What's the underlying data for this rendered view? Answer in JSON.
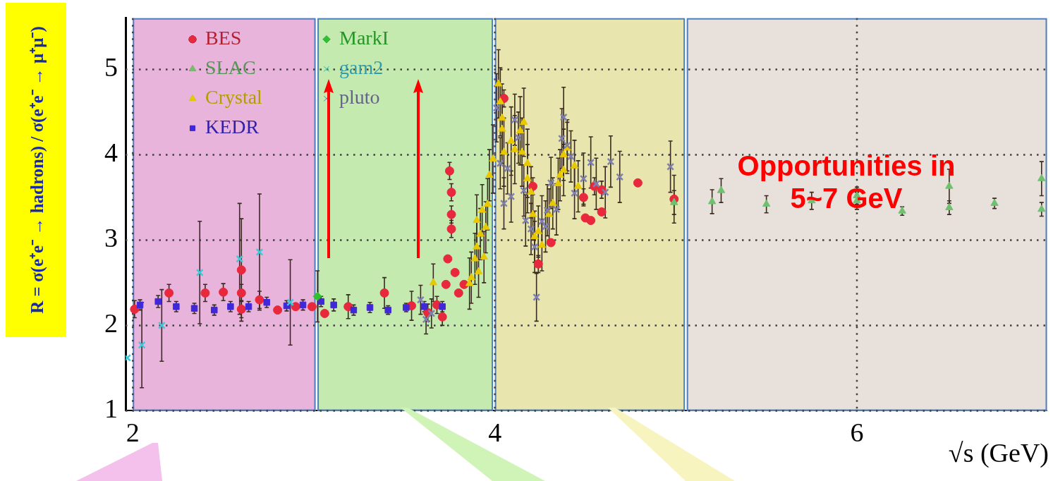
{
  "chart_data": {
    "type": "scatter",
    "xlabel": "√s (GeV)",
    "ylabel": "R = σ(e⁺e⁻ → hadrons) / σ(e⁺e⁻ → μ⁺μ⁻)",
    "xlim": [
      1.96,
      7.05
    ],
    "ylim": [
      1,
      5.6
    ],
    "xticks": [
      2,
      4,
      6
    ],
    "yticks": [
      1,
      2,
      3,
      4,
      5
    ],
    "grid": true,
    "legend": "top left",
    "bands": [
      {
        "axis": "x",
        "from": 2.0,
        "to": 3.01,
        "color": "#e8b4dc"
      },
      {
        "axis": "x",
        "from": 3.02,
        "to": 3.99,
        "color": "#c4eab0"
      },
      {
        "axis": "x",
        "from": 4.0,
        "to": 5.05,
        "color": "#e8e6ae"
      },
      {
        "axis": "x",
        "from": 5.06,
        "to": 7.05,
        "color": "#e8e0da"
      }
    ],
    "annotations": [
      "Opportunities in 5~7 GeV"
    ],
    "series": [
      {
        "name": "BES",
        "color": "#e8283c",
        "marker": "circle",
        "x": [
          2.01,
          2.2,
          2.4,
          2.5,
          2.6,
          2.6,
          2.6,
          2.7,
          2.8,
          2.9,
          2.99,
          3.06,
          3.19,
          3.39,
          3.54,
          3.63,
          3.68,
          3.71,
          3.73,
          3.74,
          3.75,
          3.76,
          3.76,
          3.76,
          3.78,
          3.8,
          3.83,
          4.05,
          4.21,
          4.31,
          4.24,
          4.49,
          4.5,
          4.53,
          4.55,
          4.59,
          4.59,
          4.79,
          4.99
        ],
        "values": [
          2.19,
          2.38,
          2.38,
          2.39,
          2.65,
          2.38,
          2.19,
          2.3,
          2.18,
          2.22,
          2.22,
          2.14,
          2.22,
          2.38,
          2.23,
          2.15,
          2.24,
          2.1,
          2.48,
          2.78,
          3.81,
          3.56,
          3.3,
          3.13,
          2.62,
          2.38,
          2.48,
          4.66,
          3.63,
          2.97,
          2.72,
          3.5,
          3.26,
          3.23,
          3.63,
          3.59,
          3.33,
          3.67,
          3.48
        ],
        "errors": [
          0.1,
          0.1,
          0.1,
          0.1,
          0.6,
          0.1,
          0.1,
          0.1,
          null,
          null,
          null,
          null,
          0.14,
          0.18,
          0.17,
          0.1,
          0.1,
          0.1,
          null,
          null,
          0.1,
          0.1,
          0.1,
          0.1,
          null,
          null,
          null,
          0.1,
          0.1,
          null,
          0.1,
          0.1,
          null,
          null,
          0.1,
          0.1,
          null,
          null,
          0.28
        ]
      },
      {
        "name": "SLAC",
        "color": "#70c070",
        "marker": "triangle",
        "x": [
          4.99,
          5.2,
          5.25,
          5.5,
          5.75,
          6.0,
          6.0,
          6.25,
          6.51,
          6.51,
          6.76,
          7.02,
          7.02
        ],
        "values": [
          3.44,
          3.45,
          3.58,
          3.42,
          3.46,
          3.52,
          3.46,
          3.34,
          3.63,
          3.38,
          3.43,
          3.72,
          3.36
        ],
        "errors": [
          0.14,
          0.14,
          0.14,
          0.1,
          0.1,
          0.1,
          0.1,
          0.05,
          0.2,
          0.08,
          0.06,
          0.2,
          0.08
        ]
      },
      {
        "name": "Crystal",
        "color": "#e8c800",
        "marker": "triangle",
        "x": [
          3.66,
          3.86,
          3.89,
          3.9,
          3.92,
          3.9,
          3.93,
          3.95,
          3.96,
          3.97,
          3.99,
          3.94,
          3.91,
          3.87,
          4.02,
          4.03,
          4.04,
          4.04,
          4.05,
          4.09,
          4.11,
          4.14,
          4.16,
          4.15,
          4.18,
          4.18,
          4.2,
          4.21,
          4.22,
          4.26,
          4.24,
          4.3,
          4.32,
          4.35,
          4.36,
          4.38,
          4.38,
          4.4,
          4.44,
          4.46
        ],
        "values": [
          2.5,
          2.49,
          2.78,
          2.92,
          3.07,
          3.23,
          3.35,
          3.15,
          3.42,
          3.76,
          3.95,
          2.8,
          2.63,
          2.56,
          4.83,
          4.62,
          4.43,
          4.3,
          4.03,
          4.16,
          4.06,
          4.28,
          4.38,
          4.03,
          3.9,
          3.72,
          3.56,
          3.3,
          3.04,
          2.94,
          3.1,
          3.3,
          3.43,
          3.66,
          3.76,
          3.82,
          4.0,
          4.08,
          3.87,
          3.63
        ],
        "errors": [
          0.22,
          0.3,
          0.3,
          0.3,
          0.3,
          0.3,
          0.3,
          0.3,
          0.3,
          0.3,
          0.4,
          0.3,
          0.3,
          0.3,
          0.4,
          0.4,
          0.4,
          0.4,
          0.4,
          0.4,
          0.4,
          0.4,
          0.4,
          0.4,
          0.4,
          0.4,
          0.3,
          0.3,
          0.3,
          0.3,
          0.3,
          0.3,
          0.3,
          0.3,
          0.3,
          0.3,
          0.3,
          0.3,
          0.3,
          0.3
        ]
      },
      {
        "name": "KEDR",
        "color": "#4028d8",
        "marker": "square",
        "x": [
          2.04,
          2.14,
          2.24,
          2.34,
          2.45,
          2.54,
          2.64,
          2.74,
          2.85,
          2.94,
          3.04,
          3.11,
          3.22,
          3.31,
          3.41,
          3.51,
          3.61,
          3.71
        ],
        "values": [
          2.24,
          2.28,
          2.22,
          2.2,
          2.18,
          2.22,
          2.22,
          2.27,
          2.23,
          2.24,
          2.28,
          2.24,
          2.18,
          2.21,
          2.18,
          2.21,
          2.22,
          2.22
        ],
        "errors": [
          0.06,
          0.07,
          0.06,
          0.06,
          0.06,
          0.06,
          0.06,
          0.06,
          0.06,
          0.06,
          0.06,
          0.07,
          0.06,
          0.06,
          0.05,
          0.05,
          0.06,
          0.06
        ]
      },
      {
        "name": "MarkI",
        "color": "#30c030",
        "marker": "diamond",
        "x": [
          3.02
        ],
        "values": [
          2.34
        ],
        "errors": [
          0.3
        ]
      },
      {
        "name": "gam2",
        "color": "#40c8d8",
        "marker": "cross",
        "x": [
          1.97,
          2.05,
          2.16,
          2.37,
          2.59,
          2.7,
          2.87
        ],
        "values": [
          1.62,
          1.77,
          2.0,
          2.62,
          2.78,
          2.86,
          2.27
        ],
        "errors": [
          null,
          0.5,
          0.42,
          0.6,
          0.65,
          0.68,
          0.5
        ]
      },
      {
        "name": "pluto",
        "color": "#8080b0",
        "marker": "cross",
        "x": [
          3.59,
          3.62,
          3.65,
          4.01,
          4.03,
          4.05,
          4.07,
          4.09,
          4.11,
          4.13,
          4.16,
          4.17,
          4.2,
          4.22,
          4.23,
          4.26,
          4.28,
          4.29,
          4.31,
          4.34,
          4.37,
          4.38,
          4.4,
          4.42,
          4.44,
          4.49,
          4.53,
          4.56,
          4.61,
          4.64,
          4.69,
          4.97
        ],
        "values": [
          2.3,
          2.07,
          2.14,
          4.55,
          3.9,
          3.43,
          3.84,
          3.51,
          4.41,
          4.2,
          3.58,
          3.23,
          3.13,
          2.92,
          2.33,
          3.22,
          3.16,
          3.35,
          3.67,
          3.36,
          4.19,
          4.44,
          4.11,
          3.98,
          3.55,
          3.72,
          3.91,
          3.66,
          3.56,
          3.92,
          3.74,
          3.86
        ],
        "errors": [
          0.17,
          0.17,
          0.17,
          0.4,
          0.3,
          0.3,
          0.3,
          0.3,
          0.3,
          0.3,
          0.3,
          0.3,
          0.3,
          0.3,
          0.28,
          0.3,
          0.3,
          0.3,
          0.3,
          0.3,
          0.35,
          0.35,
          0.3,
          0.3,
          0.3,
          0.3,
          0.3,
          0.3,
          0.3,
          0.3,
          0.3,
          0.3
        ]
      }
    ]
  }
}
